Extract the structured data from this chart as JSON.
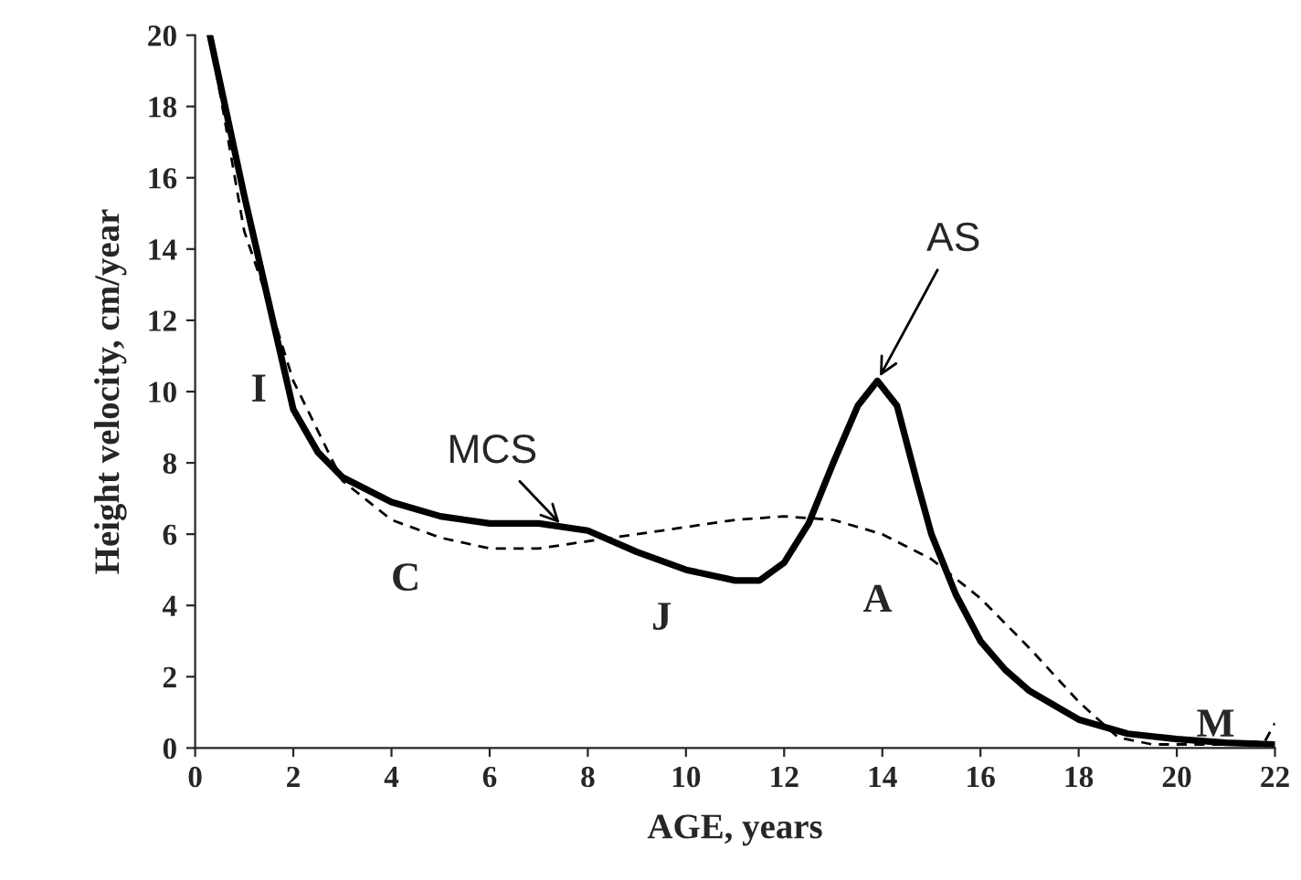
{
  "chart_data": {
    "type": "line",
    "xlabel": "AGE, years",
    "ylabel": "Height velocity, cm/year",
    "xlim": [
      0,
      22
    ],
    "xticks": [
      0,
      2,
      4,
      6,
      8,
      10,
      12,
      14,
      16,
      18,
      20,
      22
    ],
    "ylim": [
      0,
      20
    ],
    "yticks": [
      0,
      2,
      4,
      6,
      8,
      10,
      12,
      14,
      16,
      18,
      20
    ],
    "grid": false,
    "legend": false,
    "series": [
      {
        "color": "#000000",
        "line_style": "solid",
        "x": [
          0.3,
          1,
          1.5,
          2,
          2.5,
          3,
          4,
          5,
          6,
          7,
          8,
          9,
          10,
          11,
          11.5,
          12,
          12.5,
          13,
          13.5,
          13.9,
          14.3,
          14.7,
          15,
          15.5,
          16,
          16.5,
          17,
          18,
          19,
          20,
          21,
          22
        ],
        "values": [
          20,
          15.5,
          12.5,
          9.5,
          8.3,
          7.6,
          6.9,
          6.5,
          6.3,
          6.3,
          6.1,
          5.5,
          5.0,
          4.7,
          4.7,
          5.2,
          6.3,
          8,
          9.6,
          10.3,
          9.6,
          7.5,
          6,
          4.3,
          3,
          2.2,
          1.6,
          0.8,
          0.4,
          0.25,
          0.15,
          0.1
        ]
      },
      {
        "color": "#000000",
        "line_style": "dashed",
        "x": [
          0.3,
          1,
          1.5,
          2,
          3,
          4,
          5,
          6,
          7,
          8,
          9,
          10,
          11,
          12,
          13,
          14,
          15,
          16,
          17,
          18,
          18.8,
          19.5,
          21,
          21.8,
          22
        ],
        "values": [
          20,
          14.5,
          12.5,
          10.3,
          7.5,
          6.4,
          5.9,
          5.6,
          5.6,
          5.8,
          6.0,
          6.2,
          6.4,
          6.5,
          6.4,
          6.0,
          5.3,
          4.2,
          2.8,
          1.3,
          0.3,
          0.1,
          0.1,
          0.2,
          0.7
        ]
      }
    ],
    "annotations": [
      "I",
      "C",
      "J",
      "A",
      "M",
      {
        "text": "MCS",
        "x": 7.5,
        "y": 6.2
      },
      {
        "text": "AS",
        "x": 13.9,
        "y": 10.3
      }
    ]
  }
}
